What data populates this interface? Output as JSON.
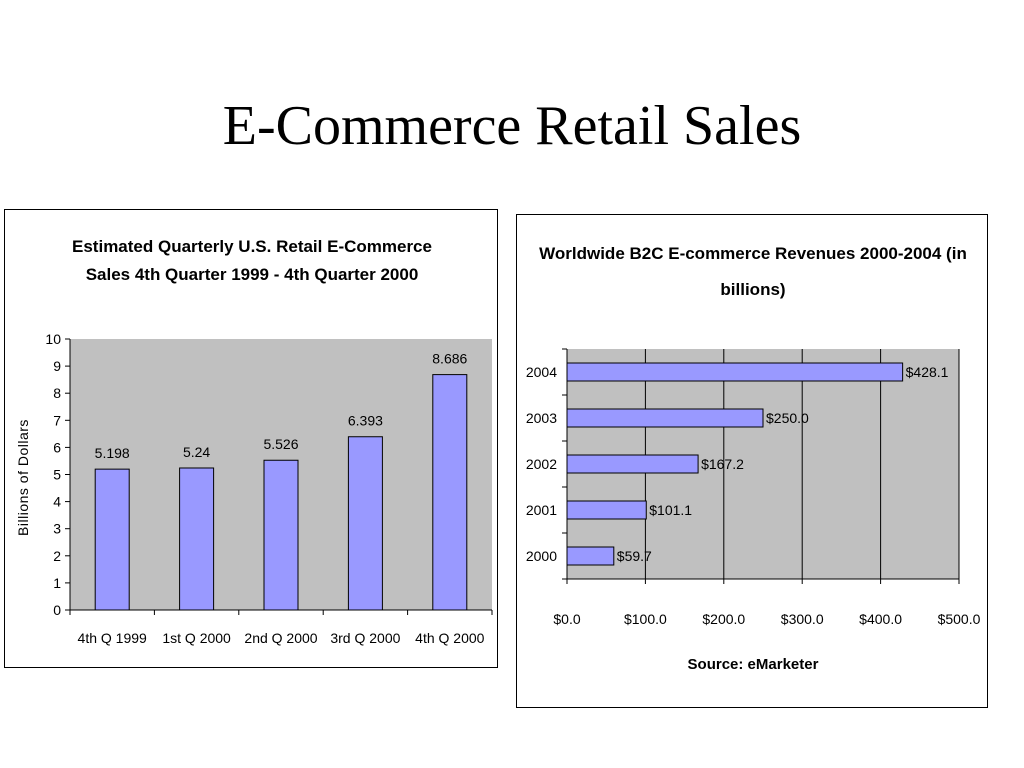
{
  "slide": {
    "title": "E-Commerce Retail Sales"
  },
  "chart_data": [
    {
      "type": "bar",
      "title_lines": [
        "Estimated Quarterly U.S. Retail E-Commerce",
        "Sales 4th Quarter 1999 - 4th Quarter 2000"
      ],
      "categories": [
        "4th Q 1999",
        "1st Q 2000",
        "2nd Q 2000",
        "3rd Q 2000",
        "4th Q 2000"
      ],
      "values": [
        5.198,
        5.24,
        5.526,
        6.393,
        8.686
      ],
      "value_labels": [
        "5.198",
        "5.24",
        "5.526",
        "6.393",
        "8.686"
      ],
      "ylabel": "Billions of Dollars",
      "xlabel": "",
      "ylim": [
        0,
        10
      ],
      "yticks": [
        "0",
        "1",
        "2",
        "3",
        "4",
        "5",
        "6",
        "7",
        "8",
        "9",
        "10"
      ],
      "bar_color": "#9999ff",
      "plot_background": "#c0c0c0",
      "grid": false,
      "legend": "none"
    },
    {
      "type": "bar",
      "orientation": "horizontal",
      "title_lines": [
        "Worldwide B2C E-commerce Revenues 2000-2004 (in",
        "billions)"
      ],
      "categories": [
        "2004",
        "2003",
        "2002",
        "2001",
        "2000"
      ],
      "values": [
        428.1,
        250.0,
        167.2,
        101.1,
        59.7
      ],
      "value_labels": [
        "$428.1",
        "$250.0",
        "$167.2",
        "$101.1",
        "$59.7"
      ],
      "xlim": [
        0,
        500
      ],
      "xticks": [
        "$0.0",
        "$100.0",
        "$200.0",
        "$300.0",
        "$400.0",
        "$500.0"
      ],
      "xlabel": "Source: eMarketer",
      "ylabel": "",
      "bar_color": "#9999ff",
      "plot_background": "#c0c0c0",
      "grid": true,
      "legend": "none"
    }
  ]
}
